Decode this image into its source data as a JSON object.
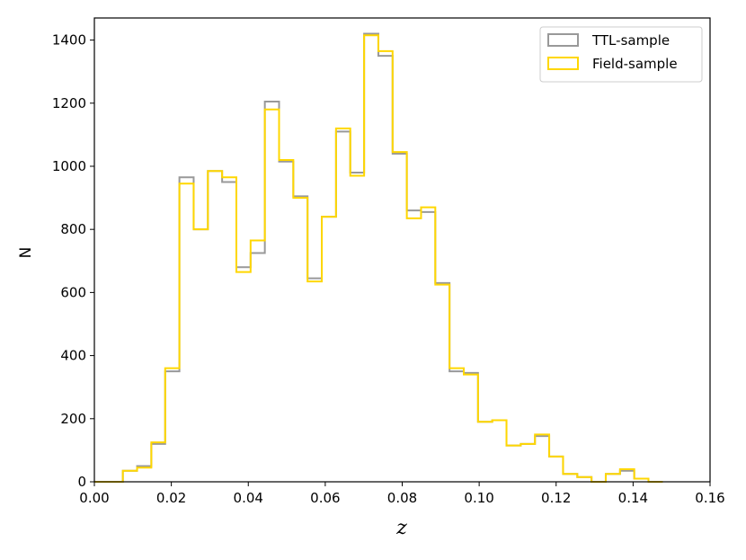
{
  "chart_data": {
    "type": "histogram",
    "xlabel": "z",
    "ylabel": "N",
    "xlim": [
      0.0,
      0.16
    ],
    "ylim": [
      0,
      1470
    ],
    "xticks": [
      "0.00",
      "0.02",
      "0.04",
      "0.06",
      "0.08",
      "0.10",
      "0.12",
      "0.14",
      "0.16"
    ],
    "yticks": [
      "0",
      "200",
      "400",
      "600",
      "800",
      "1000",
      "1200",
      "1400"
    ],
    "legend_position": "top-right",
    "bin_edges": [
      0.0,
      0.0037,
      0.0074,
      0.0111,
      0.0148,
      0.0184,
      0.0221,
      0.0258,
      0.0295,
      0.0332,
      0.0369,
      0.0406,
      0.0443,
      0.048,
      0.0517,
      0.0554,
      0.0591,
      0.0628,
      0.0665,
      0.0701,
      0.0738,
      0.0775,
      0.0812,
      0.0849,
      0.0886,
      0.0923,
      0.096,
      0.0997,
      0.1034,
      0.1071,
      0.1108,
      0.1145,
      0.1182,
      0.1218,
      0.1255,
      0.1292,
      0.1329,
      0.1366,
      0.1403,
      0.144,
      0.1477
    ],
    "series": [
      {
        "name": "TTL-sample",
        "color": "#999999",
        "values": [
          0,
          0,
          35,
          50,
          120,
          350,
          965,
          800,
          985,
          950,
          680,
          725,
          1205,
          1015,
          905,
          645,
          840,
          1110,
          980,
          1420,
          1350,
          1040,
          860,
          855,
          630,
          350,
          345,
          190,
          195,
          115,
          120,
          145,
          80,
          25,
          15,
          0,
          25,
          35,
          10,
          0
        ]
      },
      {
        "name": "Field-sample",
        "color": "#FFD700",
        "values": [
          0,
          0,
          35,
          45,
          125,
          360,
          945,
          800,
          985,
          965,
          665,
          765,
          1180,
          1020,
          900,
          635,
          840,
          1120,
          970,
          1415,
          1365,
          1045,
          835,
          870,
          625,
          360,
          340,
          190,
          195,
          115,
          120,
          150,
          80,
          25,
          15,
          0,
          25,
          40,
          10,
          0
        ]
      }
    ]
  }
}
